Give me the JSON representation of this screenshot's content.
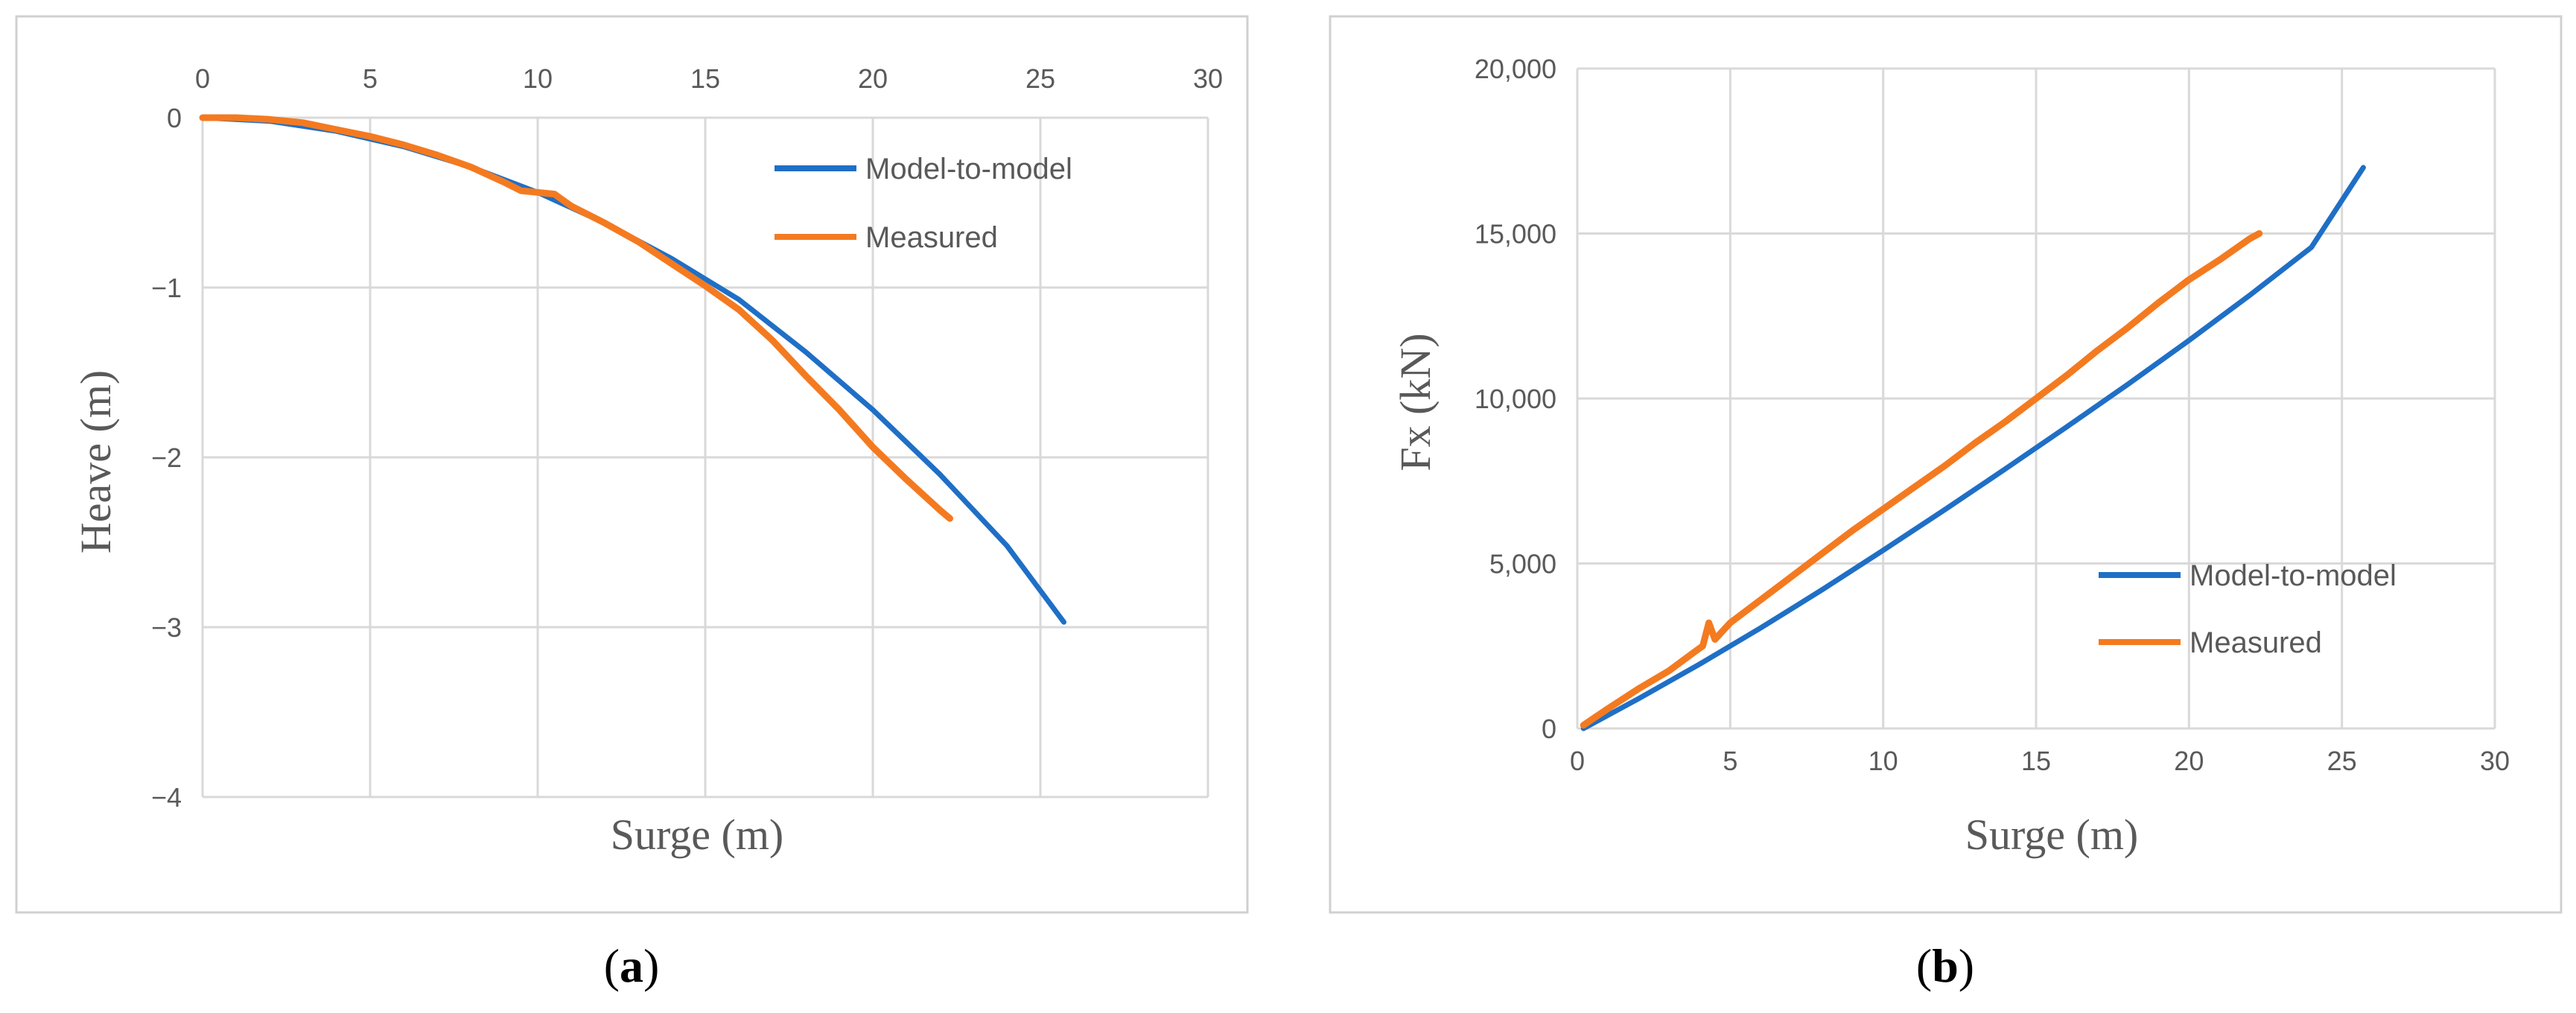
{
  "colors": {
    "model": "#1f6fc6",
    "measured": "#f47a20",
    "grid": "#d9d9d9",
    "frame": "#d0d0d0",
    "text": "#595959"
  },
  "chart_data": [
    {
      "type": "line",
      "panel_label": {
        "open": "(",
        "letter": "a",
        "close": ")"
      },
      "xlabel": "Surge (m)",
      "ylabel": "Heave (m)",
      "xlim": [
        0,
        30
      ],
      "ylim": [
        -4,
        0
      ],
      "x_ticks": [
        "0",
        "5",
        "10",
        "15",
        "20",
        "25",
        "30"
      ],
      "y_ticks": [
        "0",
        "−1",
        "−2",
        "−3",
        "−4"
      ],
      "x_axis_position": "top",
      "grid": true,
      "legend_position": "top-right",
      "series": [
        {
          "name": "Model-to-model",
          "x": [
            0,
            2,
            4,
            6,
            8,
            10,
            12,
            14,
            16,
            18,
            20,
            22,
            24,
            25.7
          ],
          "y": [
            0,
            -0.02,
            -0.08,
            -0.17,
            -0.29,
            -0.44,
            -0.62,
            -0.83,
            -1.07,
            -1.38,
            -1.72,
            -2.1,
            -2.52,
            -2.97
          ]
        },
        {
          "name": "Measured",
          "x": [
            0,
            1,
            2,
            3,
            4,
            5,
            6,
            7,
            8,
            9,
            9.5,
            10,
            10.5,
            11,
            12,
            13,
            14,
            15,
            16,
            17,
            18,
            19,
            20,
            21,
            22,
            22.3
          ],
          "y": [
            0,
            0,
            -0.01,
            -0.03,
            -0.07,
            -0.11,
            -0.16,
            -0.22,
            -0.29,
            -0.38,
            -0.43,
            -0.44,
            -0.45,
            -0.52,
            -0.62,
            -0.73,
            -0.86,
            -0.99,
            -1.13,
            -1.31,
            -1.52,
            -1.72,
            -1.94,
            -2.13,
            -2.31,
            -2.36
          ]
        }
      ]
    },
    {
      "type": "line",
      "panel_label": {
        "open": "(",
        "letter": "b",
        "close": ")"
      },
      "xlabel": "Surge (m)",
      "ylabel": "Fx (kN)",
      "xlim": [
        0,
        30
      ],
      "ylim": [
        0,
        20000
      ],
      "x_ticks": [
        "0",
        "5",
        "10",
        "15",
        "20",
        "25",
        "30"
      ],
      "y_ticks": [
        "0",
        "5,000",
        "10,000",
        "15,000",
        "20,000"
      ],
      "x_axis_position": "bottom",
      "grid": true,
      "legend_position": "bottom-right",
      "series": [
        {
          "name": "Model-to-model",
          "x": [
            0.2,
            2,
            4,
            6,
            8,
            10,
            12,
            14,
            16,
            18,
            20,
            22,
            24,
            25.7
          ],
          "y": [
            0,
            900,
            1950,
            3050,
            4200,
            5400,
            6620,
            7870,
            9140,
            10430,
            11760,
            13140,
            14580,
            17000
          ]
        },
        {
          "name": "Measured",
          "x": [
            0.2,
            1,
            2,
            3,
            3.8,
            4.1,
            4.3,
            4.5,
            5,
            6,
            7,
            8,
            9,
            10,
            11,
            12,
            13,
            14,
            15,
            16,
            17,
            18,
            19,
            20,
            21,
            22,
            22.3
          ],
          "y": [
            100,
            600,
            1200,
            1750,
            2300,
            2500,
            3200,
            2700,
            3200,
            3900,
            4600,
            5300,
            6000,
            6650,
            7300,
            7950,
            8650,
            9300,
            10000,
            10700,
            11450,
            12150,
            12900,
            13600,
            14200,
            14850,
            15000
          ]
        }
      ]
    }
  ]
}
